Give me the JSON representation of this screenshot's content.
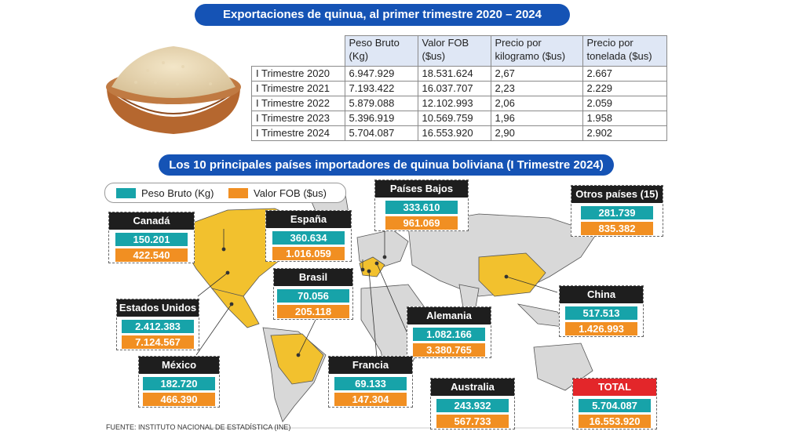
{
  "title_top": "Exportaciones de quinua, al primer trimestre 2020 – 2024",
  "table": {
    "headers": [
      "",
      "Peso Bruto\n(Kg)",
      "Valor FOB\n($us)",
      "Precio por\nkilogramo ($us)",
      "Precio por\ntonelada ($us)"
    ],
    "rows": [
      [
        "I Trimestre 2020",
        "6.947.929",
        "18.531.624",
        "2,67",
        "2.667"
      ],
      [
        "I Trimestre 2021",
        "7.193.422",
        "16.037.707",
        "2,23",
        "2.229"
      ],
      [
        "I Trimestre 2022",
        "5.879.088",
        "12.102.993",
        "2,06",
        "2.059"
      ],
      [
        "I Trimestre 2023",
        "5.396.919",
        "10.569.759",
        "1,96",
        "1.958"
      ],
      [
        "I Trimestre 2024",
        "5.704.087",
        "16.553.920",
        "2,90",
        "2.902"
      ]
    ]
  },
  "title_map": "Los 10 principales países importadores de quinua boliviana (I Trimestre 2024)",
  "legend": {
    "peso": "Peso Bruto (Kg)",
    "valor": "Valor FOB ($us)"
  },
  "colors": {
    "teal": "#17a3a9",
    "orange": "#f18f22",
    "title_blue": "#1553b5",
    "highlight": "#f2c12e",
    "total_red": "#e3262a"
  },
  "countries": [
    {
      "name": "Canadá",
      "peso": "150.201",
      "valor": "422.540"
    },
    {
      "name": "España",
      "peso": "360.634",
      "valor": "1.016.059"
    },
    {
      "name": "Países Bajos",
      "peso": "333.610",
      "valor": "961.069"
    },
    {
      "name": "Otros países (15)",
      "peso": "281.739",
      "valor": "835.382"
    },
    {
      "name": "Brasil",
      "peso": "70.056",
      "valor": "205.118"
    },
    {
      "name": "Estados Unidos",
      "peso": "2.412.383",
      "valor": "7.124.567"
    },
    {
      "name": "China",
      "peso": "517.513",
      "valor": "1.426.993"
    },
    {
      "name": "Alemania",
      "peso": "1.082.166",
      "valor": "3.380.765"
    },
    {
      "name": "México",
      "peso": "182.720",
      "valor": "466.390"
    },
    {
      "name": "Francia",
      "peso": "69.133",
      "valor": "147.304"
    },
    {
      "name": "Australia",
      "peso": "243.932",
      "valor": "567.733"
    },
    {
      "name": "TOTAL",
      "peso": "5.704.087",
      "valor": "16.553.920"
    }
  ],
  "source": "FUENTE: INSTITUTO NACIONAL DE ESTADÍSTICA (INE)",
  "chart_data": {
    "type": "table",
    "title": "Los 10 principales países importadores de quinua boliviana (I Trimestre 2024)",
    "columns": [
      "Peso Bruto (Kg)",
      "Valor FOB ($us)"
    ],
    "categories": [
      "Canadá",
      "España",
      "Países Bajos",
      "Otros países (15)",
      "Brasil",
      "Estados Unidos",
      "China",
      "Alemania",
      "México",
      "Francia",
      "Australia",
      "TOTAL"
    ],
    "series": [
      {
        "name": "Peso Bruto (Kg)",
        "values": [
          150201,
          360634,
          333610,
          281739,
          70056,
          2412383,
          517513,
          1082166,
          182720,
          69133,
          243932,
          5704087
        ]
      },
      {
        "name": "Valor FOB ($us)",
        "values": [
          422540,
          1016059,
          961069,
          835382,
          205118,
          7124567,
          1426993,
          3380765,
          466390,
          147304,
          567733,
          16553920
        ]
      }
    ],
    "quarterly_table": {
      "columns": [
        "Peso Bruto (Kg)",
        "Valor FOB ($us)",
        "Precio por kilogramo ($us)",
        "Precio por tonelada ($us)"
      ],
      "rows": [
        "I Trimestre 2020",
        "I Trimestre 2021",
        "I Trimestre 2022",
        "I Trimestre 2023",
        "I Trimestre 2024"
      ],
      "values": [
        [
          6947929,
          18531624,
          2.67,
          2667
        ],
        [
          7193422,
          16037707,
          2.23,
          2229
        ],
        [
          5879088,
          12102993,
          2.06,
          2059
        ],
        [
          5396919,
          10569759,
          1.96,
          1958
        ],
        [
          5704087,
          16553920,
          2.9,
          2902
        ]
      ]
    }
  }
}
